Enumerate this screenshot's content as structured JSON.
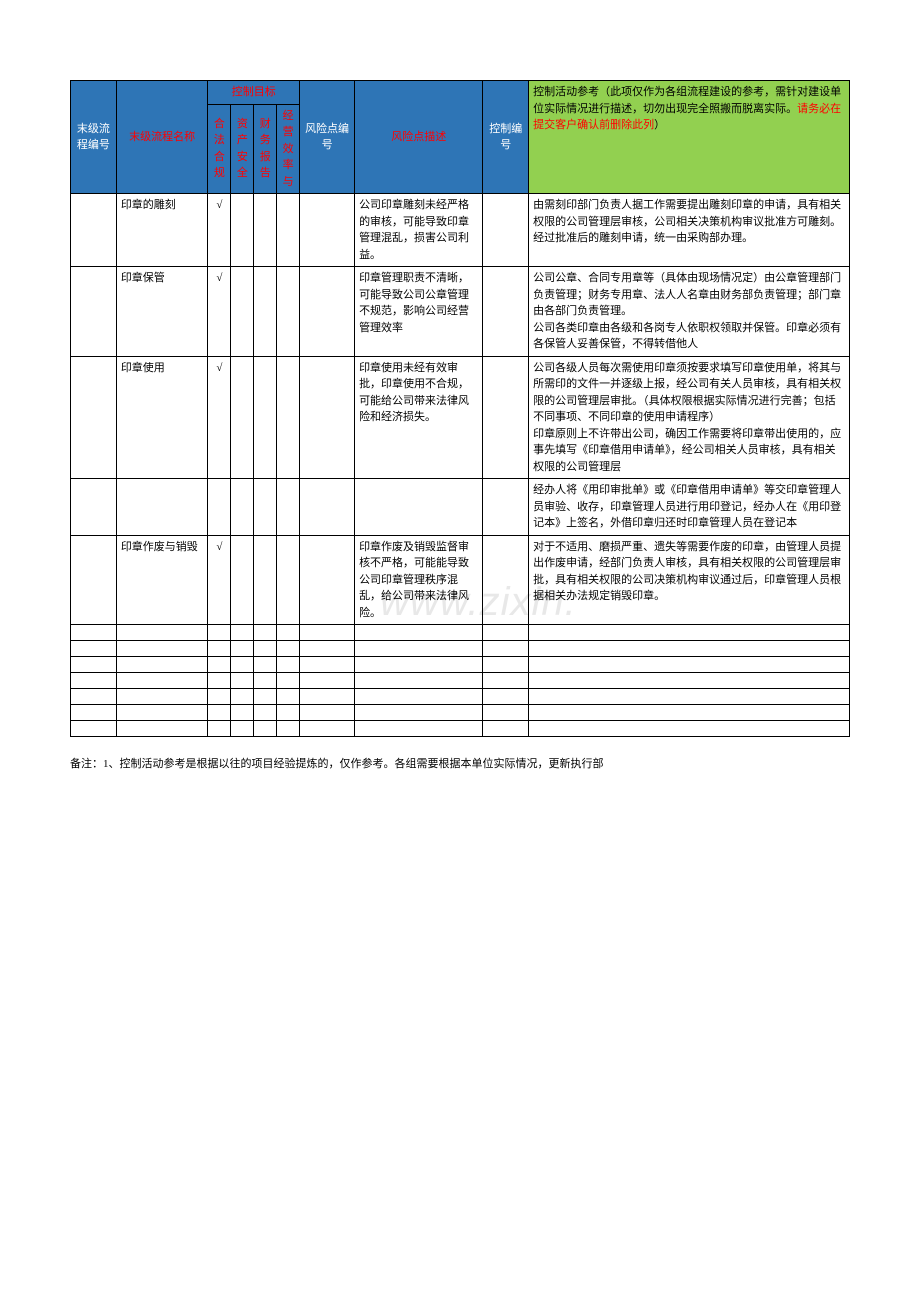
{
  "colors": {
    "header_blue": "#2e75b6",
    "header_green": "#92d050",
    "header_white_text": "#ffffff",
    "header_red_text": "#ff0000",
    "border": "#000000",
    "watermark": "#e8e8e8"
  },
  "watermark": "www.zixin.",
  "headers": {
    "col1": "末级流程编号",
    "col2": "末级流程名称",
    "ctrl_group": "控制目标",
    "ctrl1": "合法合规",
    "ctrl2": "资产安全",
    "ctrl3": "财务报告",
    "ctrl4": "经营效率与",
    "risk_num": "风险点编号",
    "risk_desc": "风险点描述",
    "ctrl_num": "控制编号",
    "ref_text1": "控制活动参考（此项仅作为各组流程建设的参考，需针对建设单位实际情况进行描述，切勿出现完全照搬而脱离实际。",
    "ref_text2": "请务必在提交客户确认前删除此列",
    "ref_text3": "）"
  },
  "rows": [
    {
      "name": "印章的雕刻",
      "c1": "√",
      "risk_desc": "公司印章雕刻未经严格的审核，可能导致印章管理混乱，损害公司利益。",
      "ref": "由需刻印部门负责人据工作需要提出雕刻印章的申请，具有相关权限的公司管理层审核，公司相关决策机构审议批准方可雕刻。经过批准后的雕刻申请，统一由采购部办理。"
    },
    {
      "name": "印章保管",
      "c1": "√",
      "risk_desc": "印章管理职责不清晰，可能导致公司公章管理不规范，影响公司经营管理效率",
      "ref": "公司公章、合同专用章等（具体由现场情况定）由公章管理部门负责管理；财务专用章、法人人名章由财务部负责管理；部门章由各部门负责管理。\n公司各类印章由各级和各岗专人依职权领取并保管。印章必须有各保管人妥善保管，不得转借他人"
    },
    {
      "name": "印章使用",
      "c1": "√",
      "risk_desc": "印章使用未经有效审批，印章使用不合规，可能给公司带来法律风险和经济损失。",
      "ref": "公司各级人员每次需使用印章须按要求填写印章使用单，将其与所需印的文件一并逐级上报，经公司有关人员审核，具有相关权限的公司管理层审批。（具体权限根据实际情况进行完善；包括不同事项、不同印章的使用申请程序）\n印章原则上不许带出公司，确因工作需要将印章带出使用的，应事先填写《印章借用申请单》，经公司相关人员审核，具有相关权限的公司管理层"
    },
    {
      "name": "",
      "c1": "",
      "risk_desc": "",
      "ref": "经办人将《用印审批单》或《印章借用申请单》等交印章管理人员审验、收存，印章管理人员进行用印登记，经办人在《用印登记本》上签名，外借印章归还时印章管理人员在登记本"
    },
    {
      "name": "印章作废与销毁",
      "c1": "√",
      "risk_desc": "印章作废及销毁监督审核不严格，可能能导致公司印章管理秩序混乱，给公司带来法律风险。",
      "ref": "对于不适用、磨损严重、遗失等需要作废的印章，由管理人员提出作废申请，经部门负责人审核，具有相关权限的公司管理层审批，具有相关权限的公司决策机构审议通过后，印章管理人员根据相关办法规定销毁印章。"
    }
  ],
  "empty_row_count": 7,
  "footnote": "备注：1、控制活动参考是根据以往的项目经验提炼的，仅作参考。各组需要根据本单位实际情况，更新执行部"
}
